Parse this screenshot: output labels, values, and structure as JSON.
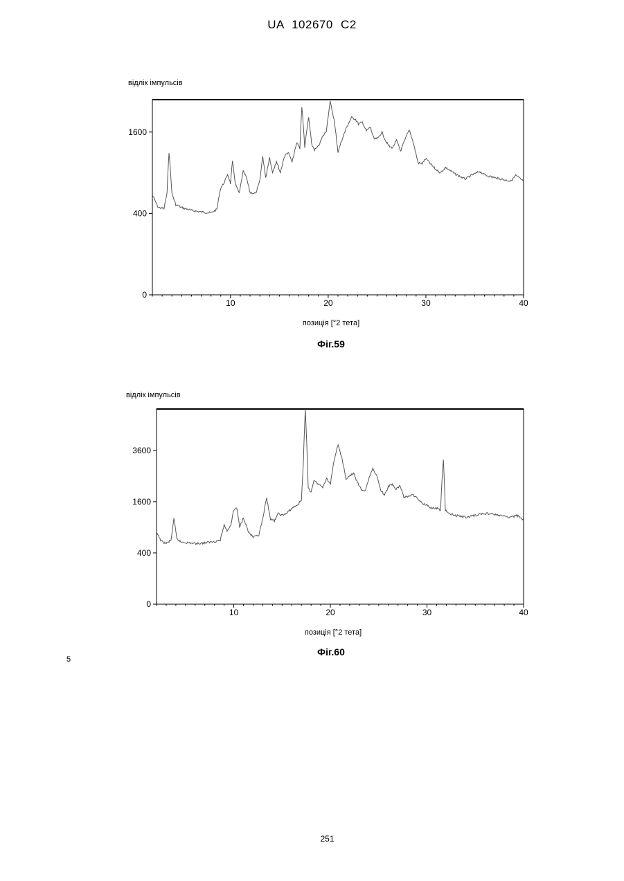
{
  "page": {
    "header": "UA   102670   C2",
    "line_number": "5",
    "page_number": "251"
  },
  "chart_data": [
    {
      "type": "line",
      "caption": "Фіг.59",
      "ylabel": "відлік імпульсів",
      "xlabel": "позиція [°2 тета]",
      "xlim": [
        2,
        40
      ],
      "ylim": [
        0,
        2300
      ],
      "y_scale": "sqrt",
      "x_ticks": [
        10,
        20,
        30,
        40
      ],
      "y_ticks": [
        0,
        400,
        1600
      ],
      "grid": false,
      "series": [
        {
          "x": [
            2.0,
            2.6,
            3.2,
            3.5,
            3.7,
            4.0,
            4.4,
            5.0,
            6.0,
            7.0,
            8.0,
            8.6,
            9.0,
            9.4,
            9.7,
            10.0,
            10.2,
            10.5,
            10.9,
            11.3,
            11.6,
            12.0,
            12.6,
            13.0,
            13.3,
            13.6,
            14.0,
            14.3,
            14.7,
            15.1,
            15.5,
            15.9,
            16.3,
            16.8,
            17.1,
            17.3,
            17.6,
            18.0,
            18.3,
            18.6,
            19.0,
            19.4,
            19.8,
            20.2,
            20.6,
            21.0,
            21.5,
            21.9,
            22.4,
            22.8,
            23.1,
            23.5,
            23.9,
            24.3,
            24.7,
            25.1,
            25.5,
            25.9,
            26.3,
            26.6,
            27.0,
            27.4,
            27.8,
            28.3,
            28.7,
            29.2,
            29.6,
            30.0,
            30.5,
            31.0,
            31.5,
            32.0,
            33.0,
            34.0,
            34.8,
            35.5,
            36.0,
            37.0,
            38.0,
            38.7,
            39.2,
            39.6,
            40.0
          ],
          "y": [
            600,
            460,
            450,
            620,
            1230,
            620,
            490,
            460,
            430,
            415,
            405,
            440,
            690,
            770,
            880,
            750,
            1070,
            740,
            620,
            920,
            840,
            630,
            620,
            780,
            1160,
            820,
            1140,
            900,
            1080,
            900,
            1150,
            1230,
            1060,
            1400,
            1300,
            2140,
            1320,
            1900,
            1370,
            1270,
            1330,
            1500,
            1620,
            2250,
            1850,
            1230,
            1500,
            1700,
            1900,
            1860,
            1760,
            1800,
            1620,
            1700,
            1460,
            1480,
            1600,
            1420,
            1320,
            1310,
            1440,
            1250,
            1420,
            1650,
            1400,
            1050,
            1040,
            1120,
            1030,
            950,
            900,
            980,
            880,
            810,
            870,
            920,
            870,
            830,
            800,
            780,
            860,
            820,
            780
          ]
        }
      ]
    },
    {
      "type": "line",
      "caption": "Фіг.60",
      "ylabel": "відлік імпульсів",
      "xlabel": "позиція [°2 тета]",
      "xlim": [
        2,
        40
      ],
      "ylim": [
        0,
        5800
      ],
      "y_scale": "sqrt",
      "x_ticks": [
        10,
        20,
        30,
        40
      ],
      "y_ticks": [
        0,
        400,
        1600,
        3600
      ],
      "grid": false,
      "series": [
        {
          "x": [
            2.0,
            2.5,
            3.0,
            3.5,
            3.8,
            4.1,
            4.5,
            5.0,
            6.0,
            7.0,
            8.0,
            8.6,
            9.0,
            9.3,
            9.7,
            10.0,
            10.3,
            10.6,
            11.0,
            11.5,
            12.0,
            12.6,
            13.0,
            13.4,
            13.8,
            14.2,
            14.6,
            15.0,
            15.5,
            16.0,
            16.6,
            17.0,
            17.2,
            17.4,
            17.7,
            18.0,
            18.3,
            18.7,
            19.2,
            19.6,
            20.0,
            20.4,
            20.8,
            21.2,
            21.6,
            22.0,
            22.4,
            22.8,
            23.2,
            23.6,
            24.0,
            24.4,
            24.8,
            25.2,
            25.6,
            26.0,
            26.4,
            26.8,
            27.2,
            27.6,
            28.0,
            28.5,
            29.0,
            29.5,
            30.0,
            30.5,
            31.0,
            31.4,
            31.7,
            31.9,
            32.2,
            33.0,
            34.0,
            35.0,
            35.8,
            36.5,
            37.5,
            38.5,
            39.5,
            40.0
          ],
          "y": [
            780,
            600,
            560,
            620,
            1100,
            650,
            590,
            580,
            560,
            570,
            600,
            620,
            950,
            820,
            960,
            1350,
            1420,
            900,
            1150,
            800,
            680,
            720,
            1100,
            1700,
            1100,
            1050,
            1250,
            1200,
            1260,
            1400,
            1500,
            1650,
            3000,
            5800,
            2100,
            1900,
            2350,
            2200,
            2100,
            2400,
            2200,
            3200,
            3900,
            3200,
            2400,
            2500,
            2600,
            2250,
            2000,
            1950,
            2400,
            2800,
            2500,
            2000,
            1800,
            2100,
            2200,
            2000,
            2150,
            1750,
            1750,
            1850,
            1700,
            1550,
            1500,
            1400,
            1400,
            1350,
            3200,
            1350,
            1250,
            1200,
            1150,
            1200,
            1250,
            1250,
            1200,
            1150,
            1200,
            1050
          ]
        }
      ]
    }
  ]
}
